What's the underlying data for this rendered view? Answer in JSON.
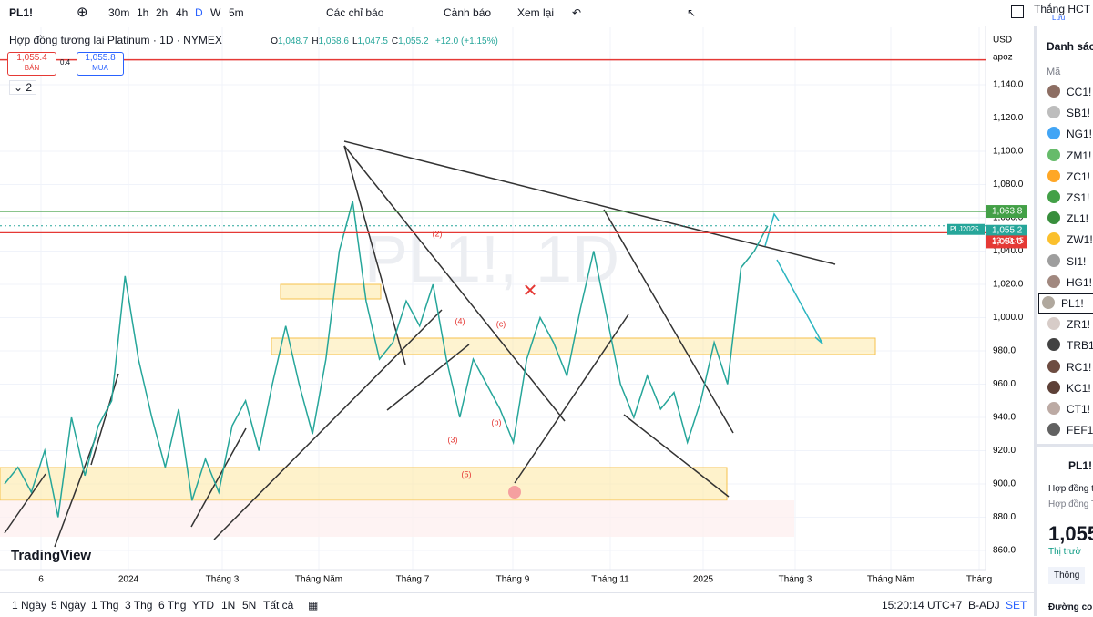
{
  "toolbar": {
    "symbol": "PL1!",
    "intervals": [
      "30m",
      "1h",
      "2h",
      "4h",
      "D",
      "W",
      "5m"
    ],
    "indicators": "Các chỉ báo",
    "alerts": "Cảnh báo",
    "replay": "Xem lại",
    "user": "Thắng HCT",
    "save": "Lưu"
  },
  "legend": {
    "title": "Hợp đồng tương lai Platinum · 1D · NYMEX",
    "ohlc": [
      [
        "O",
        "1,048.7"
      ],
      [
        "H",
        "1,058.6"
      ],
      [
        "L",
        "1,047.5"
      ],
      [
        "C",
        "1,055.2"
      ]
    ],
    "change": "+12.0 (+1.15%)",
    "sell_price": "1,055.4",
    "sell": "BÁN",
    "spread": "0.4",
    "buy_price": "1,055.8",
    "buy": "MUA",
    "indicator_count": "2"
  },
  "watermark": "PL1!, 1D",
  "logo": "TradingView",
  "axis": {
    "currency": "USD",
    "mode": "apoz",
    "symbol_tag": "PLJ2025",
    "countdown": "13:49:45"
  },
  "chart_data": {
    "type": "line",
    "values": [
      900,
      910,
      895,
      920,
      880,
      940,
      905,
      935,
      950,
      1025,
      975,
      940,
      910,
      945,
      890,
      915,
      895,
      935,
      950,
      920,
      960,
      995,
      960,
      930,
      975,
      1040,
      1070,
      1010,
      975,
      985,
      1010,
      995,
      1020,
      975,
      940,
      975,
      960,
      945,
      925,
      975,
      1000,
      985,
      965,
      1005,
      1040,
      1000,
      960,
      940,
      965,
      945,
      955,
      925,
      950,
      985,
      960,
      1030,
      1040,
      1055.2
    ],
    "color": "#26a69a",
    "ylim": [
      848.5,
      1174.5
    ],
    "yticks": [
      {
        "value": 1140,
        "label": "1,140.0"
      },
      {
        "value": 1120,
        "label": "1,120.0"
      },
      {
        "value": 1100,
        "label": "1,100.0"
      },
      {
        "value": 1080,
        "label": "1,080.0"
      },
      {
        "value": 1060,
        "label": "1,060.0"
      },
      {
        "value": 1040,
        "label": "1,040.0"
      },
      {
        "value": 1020,
        "label": "1,020.0"
      },
      {
        "value": 1000,
        "label": "1,000.0"
      },
      {
        "value": 980,
        "label": "980.0"
      },
      {
        "value": 960,
        "label": "960.0"
      },
      {
        "value": 940,
        "label": "940.0"
      },
      {
        "value": 920,
        "label": "920.0"
      },
      {
        "value": 900,
        "label": "900.0"
      },
      {
        "value": 880,
        "label": "880.0"
      },
      {
        "value": 860,
        "label": "860.0"
      }
    ],
    "levels": [
      {
        "value": 1063.8,
        "label": "1,063.8",
        "color": "#43a047"
      },
      {
        "value": 1055.2,
        "label": "1,055.2",
        "color": "#26a69a"
      },
      {
        "value": 1051.0,
        "label": "1,051.0",
        "color": "#e53935"
      }
    ],
    "hline": 1155,
    "x_labels": [
      "6",
      "2024",
      "Tháng 3",
      "Tháng Năm",
      "Tháng 7",
      "Tháng 9",
      "Tháng 11",
      "2025",
      "Tháng 3",
      "Tháng Năm",
      "Tháng"
    ],
    "wave_labels": [
      "(2)",
      "(4)",
      "(c)",
      "(3)",
      "(5)",
      "(b)"
    ],
    "grid": true
  },
  "ranges": [
    "1 Ngày",
    "5 Ngày",
    "1 Thg",
    "3 Thg",
    "6 Thg",
    "YTD",
    "1N",
    "5N",
    "Tất cả"
  ],
  "status": {
    "time": "15:20:14 UTC+7",
    "adj": "B-ADJ",
    "set": "SET"
  },
  "watchlist": {
    "title": "Danh sách",
    "column": "Mã",
    "items": [
      "CC1!",
      "SB1!",
      "NG1!",
      "ZM1!",
      "ZC1!",
      "ZS1!",
      "ZL1!",
      "ZW1!",
      "SI1!",
      "HG1!",
      "PL1!",
      "ZR1!",
      "TRB1!",
      "RC1!",
      "KC1!",
      "CT1!",
      "FEF1!"
    ],
    "detail_symbol": "PL1!",
    "detail_name": "Hợp đồng tư",
    "detail_type": "Hợp đồng T",
    "detail_price": "1,055",
    "detail_market": "Thị trườ",
    "detail_button": "Thông",
    "detail_footer": "Đường co"
  }
}
